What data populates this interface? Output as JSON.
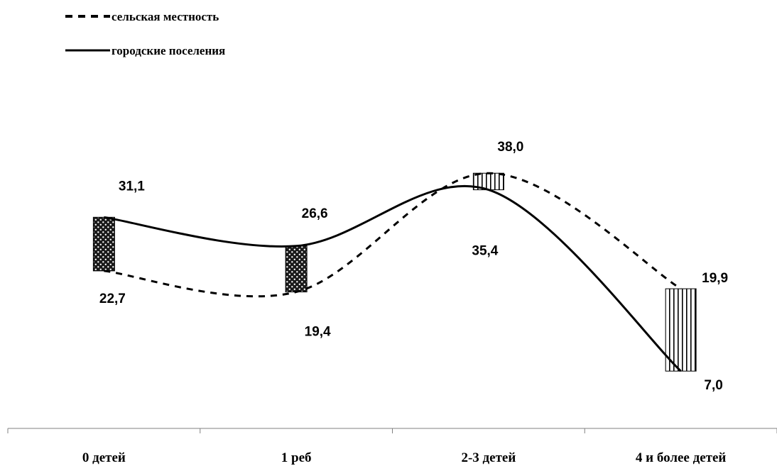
{
  "chart_data": {
    "type": "line",
    "categories": [
      "0 детей",
      "1 реб",
      "2-3 детей",
      "4 и более детей"
    ],
    "series": [
      {
        "name": "сельская местность",
        "style": "dashed",
        "color": "#000000",
        "values": [
          22.7,
          19.4,
          38.0,
          19.9
        ],
        "labels": [
          "22,7",
          "19,4",
          "38,0",
          "19,9"
        ]
      },
      {
        "name": "городские поселения",
        "style": "solid",
        "color": "#000000",
        "values": [
          31.1,
          26.6,
          35.4,
          7.0
        ],
        "labels": [
          "31,1",
          "26,6",
          "35,4",
          "7,0"
        ]
      }
    ],
    "markers": [
      "dotted-fill",
      "dotted-fill",
      "vertical-stripes",
      "vertical-stripes"
    ],
    "title": "",
    "xlabel": "",
    "ylabel": "",
    "legend_position": "top-left",
    "grid": false,
    "y_axis_shown": false
  }
}
